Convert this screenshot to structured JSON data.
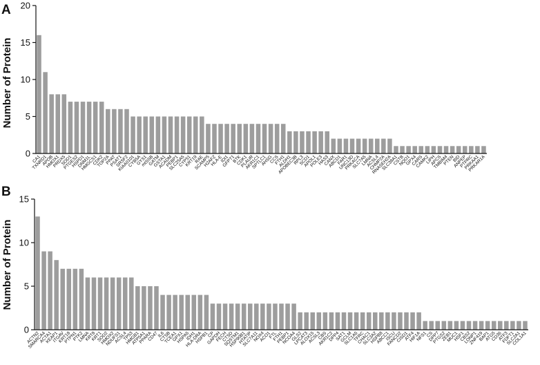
{
  "chart_data": [
    {
      "type": "bar",
      "panel": "A",
      "ylabel": "Number of Protein",
      "ylim": [
        0,
        20
      ],
      "yticks": [
        0,
        5,
        10,
        15,
        20
      ],
      "grid": false,
      "categories": [
        "CA1",
        "TXNRD1",
        "APOB",
        "HMOX1",
        "PRDX5",
        "SOD1",
        "PTGES2",
        "HSPD1",
        "DNM1L",
        "HMGCS1",
        "CDK2",
        "TOP2A",
        "PPAT",
        "PSAT1",
        "SRSF2",
        "KIAA0101",
        "CYB5A",
        "GYS1",
        "mtSSB",
        "GATM",
        "GSTA1",
        "ACADM",
        "PEBP1",
        "SLC25A5",
        "CYP51",
        "KRT19",
        "RAE",
        "SCAMP5",
        "H2AFZ",
        "HLA-E",
        "IDI1",
        "GFPT1",
        "BTK",
        "CDK1",
        "PLAUR",
        "AKR1C1",
        "SPTLC1",
        "AHSG",
        "CCS",
        "FTH1",
        "ALDH1",
        "APOBEC3B",
        "RPL3",
        "SCD1",
        "APOL1",
        "POLE3",
        "HAS3",
        "CANX",
        "ABCD1",
        "FAR1",
        "UNC13D",
        "PRKACA",
        "SLC7A5",
        "LMNA",
        "ACSL4",
        "CHMP2A",
        "RNASEH2A",
        "SLC38A1",
        "CSTB",
        "NQO1",
        "GPX4",
        "CARS",
        "CAMK2",
        "LIPH",
        "APCS",
        "TMBIM4",
        "PTEN",
        "BID",
        "ANPEP",
        "PTPRC",
        "PRKAA1",
        "PRKAR1A"
      ],
      "values": [
        16,
        11,
        8,
        8,
        8,
        7,
        7,
        7,
        7,
        7,
        7,
        6,
        6,
        6,
        6,
        5,
        5,
        5,
        5,
        5,
        5,
        5,
        5,
        5,
        5,
        5,
        5,
        4,
        4,
        4,
        4,
        4,
        4,
        4,
        4,
        4,
        4,
        4,
        4,
        4,
        3,
        3,
        3,
        3,
        3,
        3,
        3,
        2,
        2,
        2,
        2,
        2,
        2,
        2,
        2,
        2,
        2,
        1,
        1,
        1,
        1,
        1,
        1,
        1,
        1,
        1,
        1,
        1,
        1,
        1,
        1,
        1
      ]
    },
    {
      "type": "bar",
      "panel": "B",
      "ylabel": "Number of Protein",
      "ylim": [
        0,
        15
      ],
      "yticks": [
        0,
        5,
        10,
        15
      ],
      "grid": false,
      "categories": [
        "ACTN2",
        "SMARCA4",
        "ACTA1",
        "KEAP1",
        "ITGAV",
        "KRT18",
        "PTPN1",
        "PTK2",
        "LMNA",
        "KRT8",
        "KRT1",
        "SOD2",
        "HMOX2",
        "NDUFS1",
        "ACSL4",
        "TP53",
        "HMGB1",
        "ATP5A1",
        "PPARA",
        "CD47",
        "IL6",
        "CTSB",
        "TCEA1",
        "GPX1",
        "HSPA5",
        "IDH1",
        "HLA-DRA",
        "HSPB1",
        "CP",
        "GAPDH",
        "FECH",
        "CTSD",
        "SQSTM1",
        "HSP90B1",
        "HTATIP",
        "SLC7A11",
        "NOX4",
        "ACO1",
        "FTL",
        "FTH1",
        "PEBP1",
        "NCOA4",
        "GLS2",
        "LPCAT3",
        "ALOX15",
        "ACSL3",
        "CBS",
        "AKR1C2",
        "DPP4",
        "SAT1",
        "GCLM",
        "SLC1A5",
        "TFRC",
        "CHAC1",
        "SLC3A2",
        "HSPB8",
        "ABCC1",
        "ISCU",
        "FANCD2",
        "CISD1",
        "ATF4",
        "HIF1A",
        "NFS1",
        "CS",
        "DPP7",
        "PTGS2",
        "ZEB1",
        "MUC1",
        "HSF1",
        "CBS2",
        "LONP1",
        "ZNF419",
        "BAP1",
        "ATG5",
        "CD36",
        "ATF3",
        "FDFT1",
        "SLC2A1",
        "COL1A1"
      ],
      "values": [
        13,
        9,
        9,
        8,
        7,
        7,
        7,
        7,
        6,
        6,
        6,
        6,
        6,
        6,
        6,
        6,
        5,
        5,
        5,
        5,
        4,
        4,
        4,
        4,
        4,
        4,
        4,
        4,
        3,
        3,
        3,
        3,
        3,
        3,
        3,
        3,
        3,
        3,
        3,
        3,
        3,
        3,
        2,
        2,
        2,
        2,
        2,
        2,
        2,
        2,
        2,
        2,
        2,
        2,
        2,
        2,
        2,
        2,
        2,
        2,
        2,
        2,
        1,
        1,
        1,
        1,
        1,
        1,
        1,
        1,
        1,
        1,
        1,
        1,
        1,
        1,
        1,
        1,
        1
      ]
    }
  ],
  "layout_panels": [
    {
      "letter": "A"
    },
    {
      "letter": "B"
    }
  ]
}
